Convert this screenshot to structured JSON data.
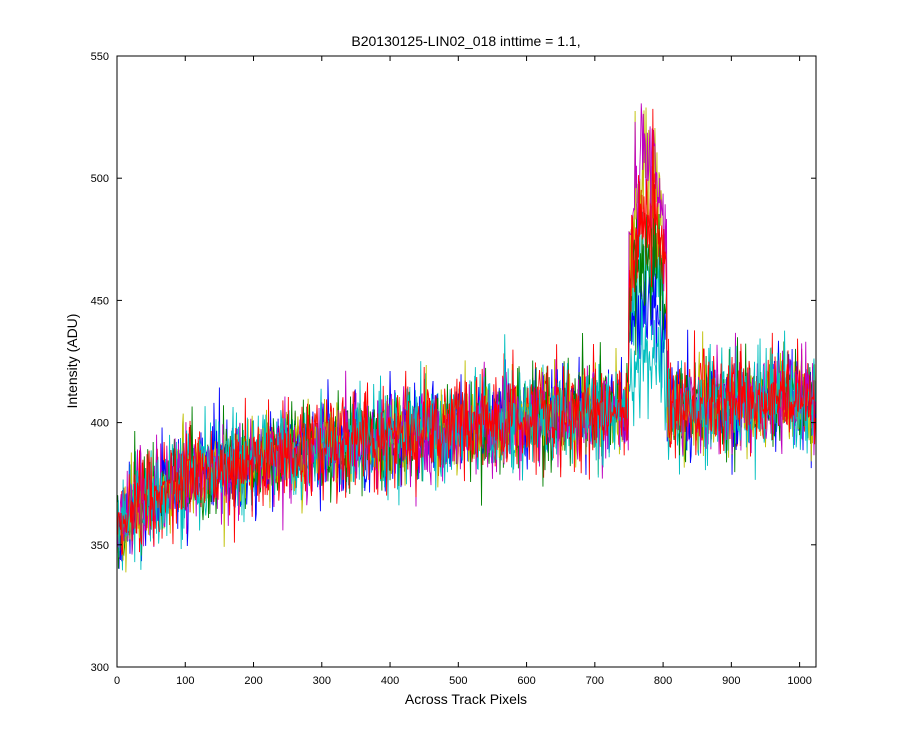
{
  "chart_data": {
    "type": "line",
    "title": "B20130125-LIN02_018 inttime = 1.1,",
    "xlabel": "Across Track Pixels",
    "ylabel": "Intensity (ADU)",
    "xlim": [
      0,
      1024
    ],
    "ylim": [
      300,
      550
    ],
    "xticks": [
      0,
      100,
      200,
      300,
      400,
      500,
      600,
      700,
      800,
      900,
      1000
    ],
    "yticks": [
      300,
      350,
      400,
      450,
      500,
      550
    ],
    "grid": false,
    "legend": "none",
    "x_range": [
      0,
      1023
    ],
    "series_colors": [
      "#00bfbf",
      "#ff0000",
      "#0000ff",
      "#008000",
      "#bfbf00",
      "#bf00bf",
      "#00bfbf",
      "#ff0000"
    ],
    "baseline_trend": [
      {
        "x": 0,
        "y": 362
      },
      {
        "x": 100,
        "y": 378
      },
      {
        "x": 200,
        "y": 384
      },
      {
        "x": 300,
        "y": 390
      },
      {
        "x": 400,
        "y": 394
      },
      {
        "x": 500,
        "y": 398
      },
      {
        "x": 600,
        "y": 402
      },
      {
        "x": 700,
        "y": 404
      },
      {
        "x": 800,
        "y": 406
      },
      {
        "x": 900,
        "y": 408
      },
      {
        "x": 1023,
        "y": 410
      }
    ],
    "noise_amplitude_adu": 15,
    "peak_region": {
      "x_start": 750,
      "x_end": 805,
      "max_intensity": 531
    }
  }
}
